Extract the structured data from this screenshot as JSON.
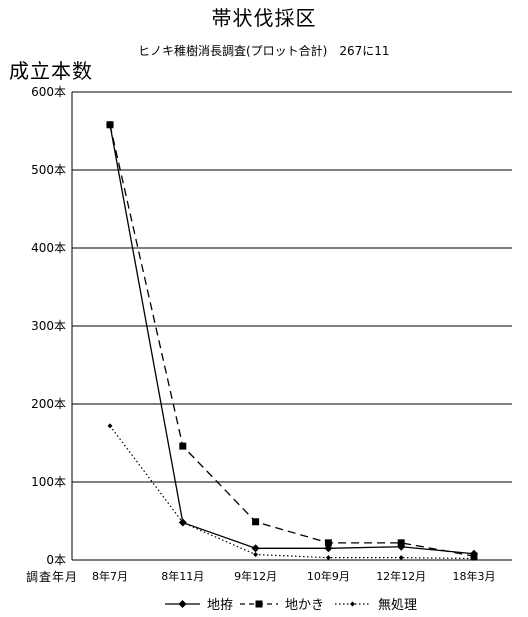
{
  "chart_data": {
    "type": "line",
    "title": "帯状伐採区",
    "subtitle": "ヒノキ稚樹消長調査(プロット合計)　267に11",
    "ylabel": "成立本数",
    "xlabel": "調査年月",
    "categories": [
      "8年7月",
      "8年11月",
      "9年12月",
      "10年9月",
      "12年12月",
      "18年3月"
    ],
    "y_ticks": [
      "0本",
      "100本",
      "200本",
      "300本",
      "400本",
      "500本",
      "600本"
    ],
    "ylim": [
      0,
      600
    ],
    "grid": true,
    "legend_position": "bottom",
    "series": [
      {
        "name": "地拵",
        "values": [
          558,
          48,
          15,
          15,
          17,
          8
        ],
        "color": "#000000",
        "dash": "solid",
        "marker": "diamond"
      },
      {
        "name": "地かき",
        "values": [
          558,
          146,
          49,
          22,
          22,
          5
        ],
        "color": "#000000",
        "dash": "dashed",
        "marker": "square"
      },
      {
        "name": "無処理",
        "values": [
          172,
          48,
          7,
          3,
          3,
          2
        ],
        "color": "#000000",
        "dash": "dotted",
        "marker": "small"
      }
    ]
  }
}
